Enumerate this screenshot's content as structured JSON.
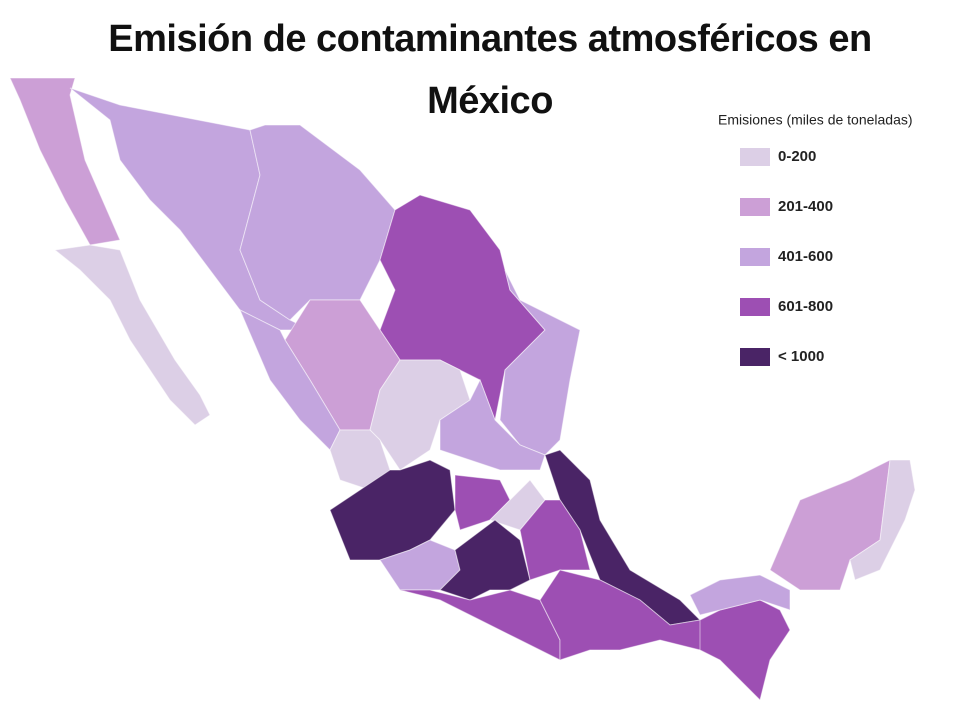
{
  "title": "Emisión de contaminantes atmosféricos en México",
  "legend": {
    "title": "Emisiones (miles de toneladas)",
    "items": [
      {
        "label": "0-200",
        "color": "#dccfe6"
      },
      {
        "label": "201-400",
        "color": "#cc9fd6"
      },
      {
        "label": "401-600",
        "color": "#c3a5de"
      },
      {
        "label": "601-800",
        "color": "#9d4fb3"
      },
      {
        "label": "< 1000",
        "color": "#4a2466"
      }
    ]
  }
}
